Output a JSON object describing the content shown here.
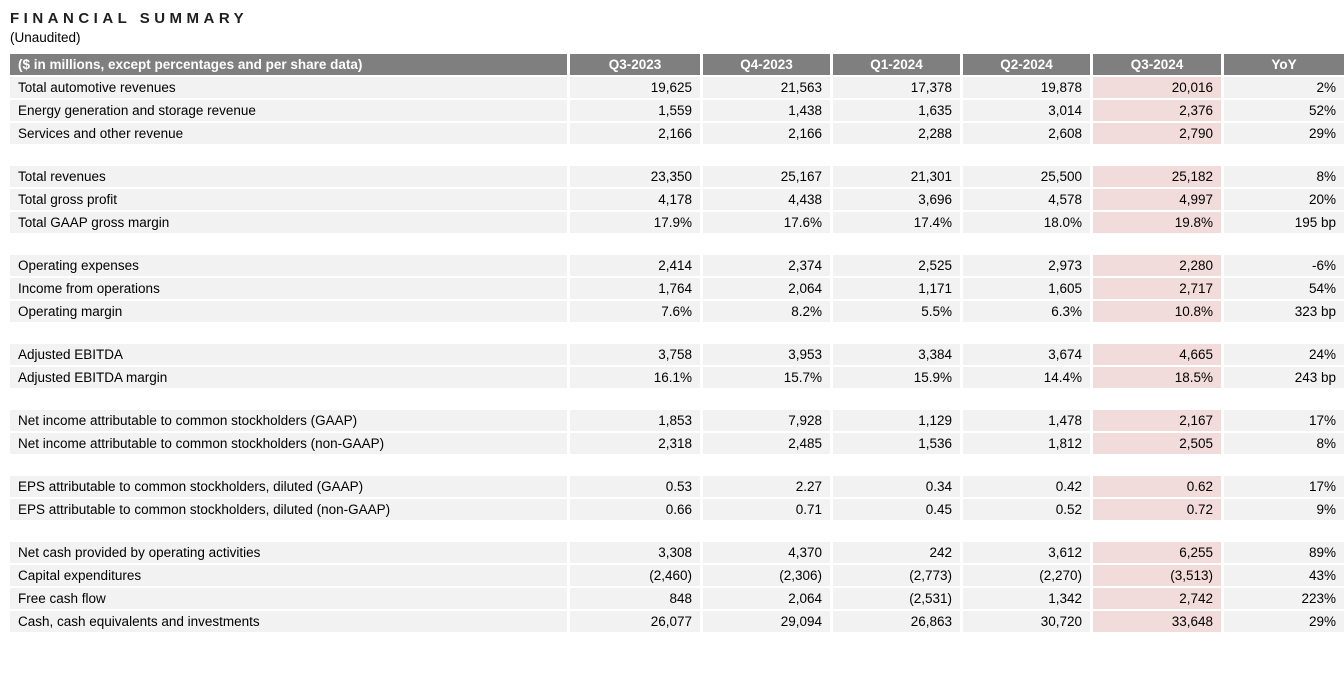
{
  "page": {
    "title": "FINANCIAL SUMMARY",
    "subtitle": "(Unaudited)"
  },
  "colors": {
    "header_bg": "#7f7f7f",
    "header_text": "#ffffff",
    "row_bg": "#f2f2f2",
    "highlight_bg": "#f2dcdb"
  },
  "table": {
    "label_header": "($ in millions, except percentages and per share data)",
    "columns": [
      "Q3-2023",
      "Q4-2023",
      "Q1-2024",
      "Q2-2024",
      "Q3-2024",
      "YoY"
    ],
    "highlight_column_index": 4,
    "rows": [
      {
        "label": "Total automotive revenues",
        "values": [
          "19,625",
          "21,563",
          "17,378",
          "19,878",
          "20,016",
          "2%"
        ]
      },
      {
        "label": "Energy generation and storage revenue",
        "values": [
          "1,559",
          "1,438",
          "1,635",
          "3,014",
          "2,376",
          "52%"
        ]
      },
      {
        "label": "Services and other revenue",
        "values": [
          "2,166",
          "2,166",
          "2,288",
          "2,608",
          "2,790",
          "29%"
        ]
      },
      {
        "spacer": true
      },
      {
        "label": "Total revenues",
        "values": [
          "23,350",
          "25,167",
          "21,301",
          "25,500",
          "25,182",
          "8%"
        ]
      },
      {
        "label": "Total gross profit",
        "values": [
          "4,178",
          "4,438",
          "3,696",
          "4,578",
          "4,997",
          "20%"
        ]
      },
      {
        "label": "Total GAAP gross margin",
        "values": [
          "17.9%",
          "17.6%",
          "17.4%",
          "18.0%",
          "19.8%",
          "195 bp"
        ]
      },
      {
        "spacer": true
      },
      {
        "label": "Operating expenses",
        "values": [
          "2,414",
          "2,374",
          "2,525",
          "2,973",
          "2,280",
          "-6%"
        ]
      },
      {
        "label": "Income from operations",
        "values": [
          "1,764",
          "2,064",
          "1,171",
          "1,605",
          "2,717",
          "54%"
        ]
      },
      {
        "label": "Operating margin",
        "values": [
          "7.6%",
          "8.2%",
          "5.5%",
          "6.3%",
          "10.8%",
          "323 bp"
        ]
      },
      {
        "spacer": true
      },
      {
        "label": "Adjusted EBITDA",
        "values": [
          "3,758",
          "3,953",
          "3,384",
          "3,674",
          "4,665",
          "24%"
        ]
      },
      {
        "label": "Adjusted EBITDA margin",
        "values": [
          "16.1%",
          "15.7%",
          "15.9%",
          "14.4%",
          "18.5%",
          "243 bp"
        ]
      },
      {
        "spacer": true
      },
      {
        "label": "Net income attributable to common stockholders (GAAP)",
        "values": [
          "1,853",
          "7,928",
          "1,129",
          "1,478",
          "2,167",
          "17%"
        ]
      },
      {
        "label": "Net income attributable to common stockholders (non-GAAP)",
        "values": [
          "2,318",
          "2,485",
          "1,536",
          "1,812",
          "2,505",
          "8%"
        ]
      },
      {
        "spacer": true
      },
      {
        "label": "EPS attributable to common stockholders, diluted (GAAP)",
        "values": [
          "0.53",
          "2.27",
          "0.34",
          "0.42",
          "0.62",
          "17%"
        ]
      },
      {
        "label": "EPS attributable to common stockholders, diluted (non-GAAP)",
        "values": [
          "0.66",
          "0.71",
          "0.45",
          "0.52",
          "0.72",
          "9%"
        ]
      },
      {
        "spacer": true
      },
      {
        "label": "Net cash provided by operating activities",
        "values": [
          "3,308",
          "4,370",
          "242",
          "3,612",
          "6,255",
          "89%"
        ]
      },
      {
        "label": "Capital expenditures",
        "values": [
          "(2,460)",
          "(2,306)",
          "(2,773)",
          "(2,270)",
          "(3,513)",
          "43%"
        ]
      },
      {
        "label": "Free cash flow",
        "values": [
          "848",
          "2,064",
          "(2,531)",
          "1,342",
          "2,742",
          "223%"
        ]
      },
      {
        "label": "Cash, cash equivalents and investments",
        "values": [
          "26,077",
          "29,094",
          "26,863",
          "30,720",
          "33,648",
          "29%"
        ]
      }
    ]
  }
}
